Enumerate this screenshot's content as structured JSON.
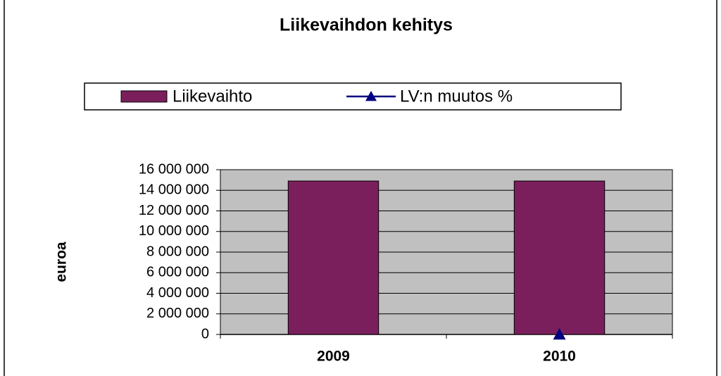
{
  "chart_data": {
    "type": "bar",
    "title": "Liikevaihdon kehitys",
    "y_label": "euroa",
    "categories": [
      "2009",
      "2010"
    ],
    "series": [
      {
        "name": "Liikevaihto",
        "type": "bar",
        "color": "#7b1f5c",
        "values": [
          14900000,
          14900000
        ]
      },
      {
        "name": "LV:n muutos %",
        "type": "line",
        "color": "#000080",
        "values": [
          null,
          0
        ]
      }
    ],
    "ylim": [
      0,
      16000000
    ],
    "yticks": [
      0,
      {
        "value": 2000000,
        "label": "2 000 000"
      },
      {
        "value": 4000000,
        "label": "4 000 000"
      },
      {
        "value": 6000000,
        "label": "6 000 000"
      },
      {
        "value": 8000000,
        "label": "8 000 000"
      },
      {
        "value": 10000000,
        "label": "10 000 000"
      },
      {
        "value": 12000000,
        "label": "12 000 000"
      },
      {
        "value": 14000000,
        "label": "14 000 000"
      },
      {
        "value": 16000000,
        "label": "16 000 000"
      }
    ],
    "grid": true,
    "plot_background": "#c0c0c0",
    "legend": "top"
  }
}
